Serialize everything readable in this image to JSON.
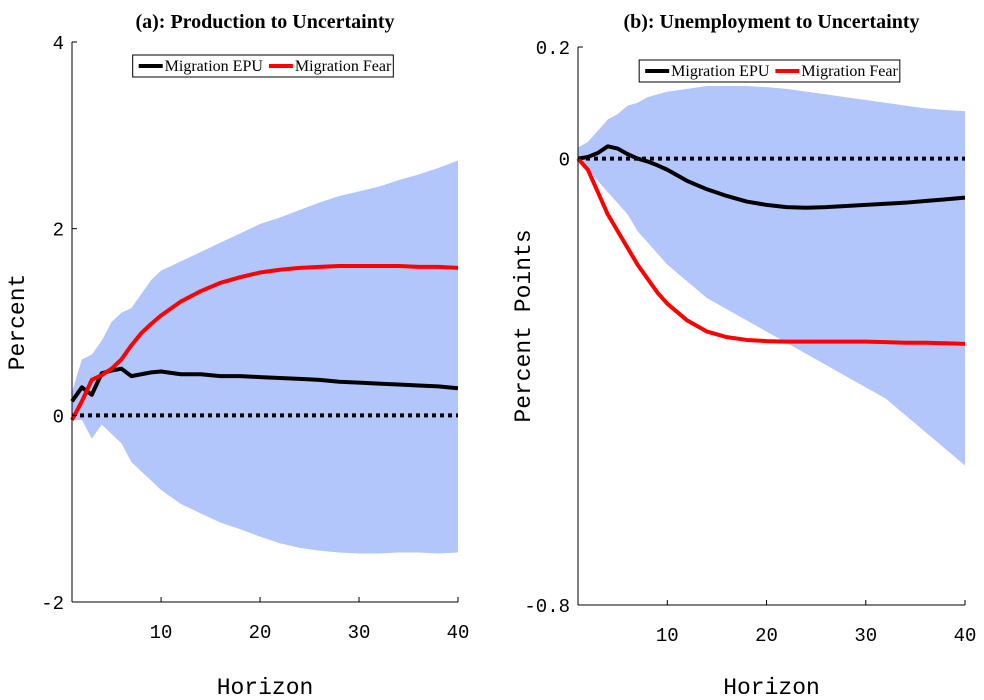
{
  "chart_data": [
    {
      "type": "line",
      "title": "(a): Production to Uncertainty",
      "xlabel": "Horizon",
      "ylabel": "Percent",
      "x": [
        1,
        2,
        3,
        4,
        5,
        6,
        7,
        8,
        9,
        10,
        12,
        14,
        16,
        18,
        20,
        22,
        24,
        26,
        28,
        30,
        32,
        34,
        36,
        38,
        40
      ],
      "series": [
        {
          "name": "Migration EPU",
          "color": "#000000",
          "values": [
            0.15,
            0.3,
            0.22,
            0.45,
            0.48,
            0.5,
            0.42,
            0.44,
            0.46,
            0.47,
            0.44,
            0.44,
            0.42,
            0.42,
            0.41,
            0.4,
            0.39,
            0.38,
            0.36,
            0.35,
            0.34,
            0.33,
            0.32,
            0.31,
            0.29
          ]
        },
        {
          "name": "Migration Fear",
          "color": "#ff0000",
          "values": [
            -0.05,
            0.15,
            0.38,
            0.43,
            0.5,
            0.6,
            0.75,
            0.88,
            0.98,
            1.07,
            1.22,
            1.33,
            1.42,
            1.48,
            1.53,
            1.56,
            1.58,
            1.59,
            1.6,
            1.6,
            1.6,
            1.6,
            1.59,
            1.59,
            1.58
          ]
        }
      ],
      "band": {
        "color": "#b3c6fb",
        "upper": [
          0.25,
          0.6,
          0.65,
          0.8,
          1.0,
          1.1,
          1.15,
          1.3,
          1.45,
          1.55,
          1.65,
          1.75,
          1.85,
          1.95,
          2.05,
          2.12,
          2.2,
          2.28,
          2.35,
          2.4,
          2.45,
          2.52,
          2.58,
          2.65,
          2.73
        ],
        "lower": [
          -0.05,
          -0.05,
          -0.25,
          -0.1,
          -0.2,
          -0.3,
          -0.5,
          -0.6,
          -0.7,
          -0.8,
          -0.95,
          -1.05,
          -1.15,
          -1.22,
          -1.3,
          -1.37,
          -1.42,
          -1.45,
          -1.47,
          -1.48,
          -1.48,
          -1.47,
          -1.47,
          -1.48,
          -1.47
        ]
      },
      "hline": 0,
      "xlim": [
        1,
        40
      ],
      "xticks": [
        10,
        20,
        30,
        40
      ],
      "ylim": [
        -2,
        4
      ],
      "yticks": [
        -2,
        0,
        2,
        4
      ],
      "legend": "top"
    },
    {
      "type": "line",
      "title": "(b): Unemployment to Uncertainty",
      "xlabel": "Horizon",
      "ylabel": "Percent Points",
      "x": [
        1,
        2,
        3,
        4,
        5,
        6,
        7,
        8,
        9,
        10,
        12,
        14,
        16,
        18,
        20,
        22,
        24,
        26,
        28,
        30,
        32,
        34,
        36,
        38,
        40
      ],
      "series": [
        {
          "name": "Migration EPU",
          "color": "#000000",
          "values": [
            0,
            0.003,
            0.01,
            0.022,
            0.018,
            0.008,
            0,
            -0.005,
            -0.012,
            -0.02,
            -0.04,
            -0.055,
            -0.067,
            -0.077,
            -0.083,
            -0.087,
            -0.088,
            -0.087,
            -0.085,
            -0.083,
            -0.081,
            -0.079,
            -0.076,
            -0.073,
            -0.07
          ]
        },
        {
          "name": "Migration Fear",
          "color": "#ff0000",
          "values": [
            0,
            -0.02,
            -0.06,
            -0.1,
            -0.13,
            -0.16,
            -0.19,
            -0.215,
            -0.24,
            -0.26,
            -0.29,
            -0.31,
            -0.32,
            -0.325,
            -0.327,
            -0.328,
            -0.328,
            -0.328,
            -0.328,
            -0.328,
            -0.329,
            -0.33,
            -0.33,
            -0.331,
            -0.332
          ]
        }
      ],
      "band": {
        "color": "#b3c6fb",
        "upper": [
          0.02,
          0.03,
          0.05,
          0.07,
          0.08,
          0.095,
          0.1,
          0.11,
          0.115,
          0.12,
          0.125,
          0.13,
          0.13,
          0.13,
          0.128,
          0.125,
          0.12,
          0.115,
          0.11,
          0.105,
          0.1,
          0.095,
          0.09,
          0.087,
          0.085
        ],
        "lower": [
          0,
          -0.02,
          -0.04,
          -0.06,
          -0.08,
          -0.1,
          -0.13,
          -0.15,
          -0.17,
          -0.19,
          -0.22,
          -0.25,
          -0.27,
          -0.29,
          -0.31,
          -0.33,
          -0.35,
          -0.37,
          -0.39,
          -0.41,
          -0.43,
          -0.46,
          -0.49,
          -0.52,
          -0.55
        ]
      },
      "hline": 0,
      "xlim": [
        1,
        40
      ],
      "xticks": [
        10,
        20,
        30,
        40
      ],
      "ylim": [
        -0.8,
        0.2
      ],
      "yticks": [
        -0.8,
        0,
        0.2
      ],
      "legend": "top"
    }
  ]
}
